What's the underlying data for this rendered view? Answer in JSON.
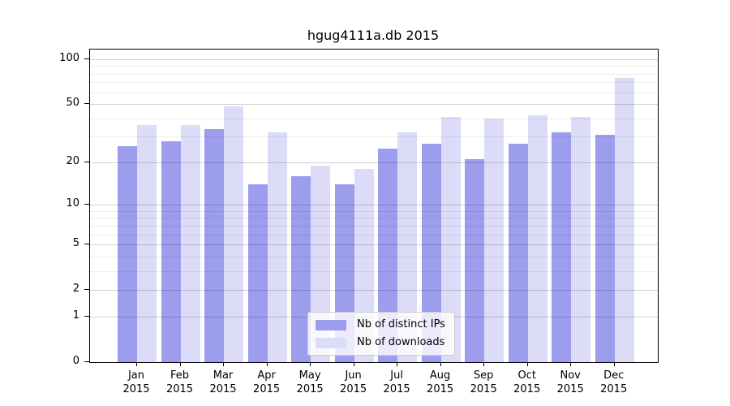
{
  "title": "hgug4111a.db 2015",
  "chart_data": {
    "type": "bar",
    "title": "hgug4111a.db 2015",
    "categories": [
      "Jan",
      "Feb",
      "Mar",
      "Apr",
      "May",
      "Jun",
      "Jul",
      "Aug",
      "Sep",
      "Oct",
      "Nov",
      "Dec"
    ],
    "x_sublabel": "2015",
    "series": [
      {
        "name": "Nb of distinct IPs",
        "color": "#9d9dee",
        "values": [
          26,
          28,
          34,
          14,
          16,
          14,
          25,
          27,
          21,
          27,
          32,
          31
        ]
      },
      {
        "name": "Nb of downloads",
        "color": "#dcdcf9",
        "values": [
          36,
          36,
          48,
          32,
          19,
          18,
          32,
          41,
          40,
          42,
          41,
          75
        ]
      }
    ],
    "yscale": "log1p",
    "ylim": [
      0,
      116
    ],
    "y_ticks": [
      0,
      1,
      2,
      5,
      10,
      20,
      50,
      100
    ],
    "minor_gridlines": [
      3,
      4,
      6,
      7,
      8,
      9,
      30,
      40,
      60,
      70,
      80,
      90
    ],
    "grid": true,
    "legend_position": "lower center"
  }
}
